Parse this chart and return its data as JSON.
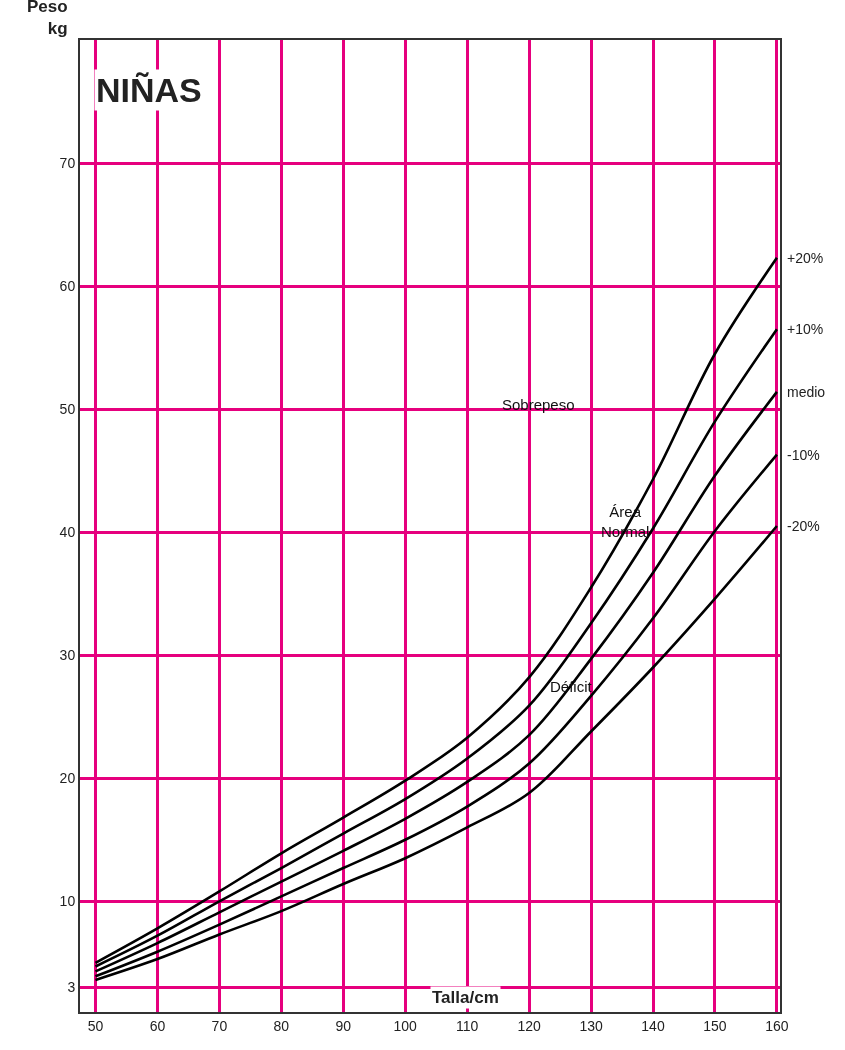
{
  "chart_data": {
    "type": "line",
    "title": "NIÑAS",
    "xlabel": "Talla/cm",
    "ylabel": "Peso\nkg",
    "x": [
      50,
      60,
      70,
      80,
      90,
      100,
      110,
      120,
      130,
      140,
      150,
      160
    ],
    "series": [
      {
        "name": "+20%",
        "color": "#000000",
        "values": [
          5.0,
          7.8,
          10.8,
          13.9,
          16.8,
          19.8,
          23.3,
          28.2,
          35.5,
          44.3,
          54.5,
          62.3
        ]
      },
      {
        "name": "+10%",
        "color": "#000000",
        "values": [
          4.7,
          7.2,
          10.0,
          12.7,
          15.5,
          18.3,
          21.6,
          25.9,
          32.6,
          40.3,
          49.0,
          56.5
        ]
      },
      {
        "name": "medio",
        "color": "#000000",
        "values": [
          4.3,
          6.6,
          9.1,
          11.6,
          14.1,
          16.7,
          19.7,
          23.5,
          29.7,
          36.7,
          44.6,
          51.4
        ]
      },
      {
        "name": "-10%",
        "color": "#000000",
        "values": [
          3.9,
          5.9,
          8.1,
          10.4,
          12.7,
          15.0,
          17.7,
          21.2,
          26.7,
          33.0,
          40.1,
          46.3
        ]
      },
      {
        "name": "-20%",
        "color": "#000000",
        "values": [
          3.6,
          5.3,
          7.3,
          9.2,
          11.4,
          13.5,
          16.0,
          18.8,
          23.8,
          29.0,
          34.6,
          40.5
        ]
      }
    ],
    "annotations": [
      "Sobrepeso",
      "Área\nNormal",
      "Déficit"
    ],
    "xlim": [
      47.5,
      160.5
    ],
    "xticks": [
      50,
      60,
      70,
      80,
      90,
      100,
      110,
      120,
      130,
      140,
      150,
      160
    ],
    "ylim": [
      1,
      80
    ],
    "yticks": [
      3,
      10,
      20,
      30,
      40,
      50,
      60,
      70
    ],
    "grid": true,
    "legend": false,
    "marker": "none",
    "line_style": "solid"
  }
}
